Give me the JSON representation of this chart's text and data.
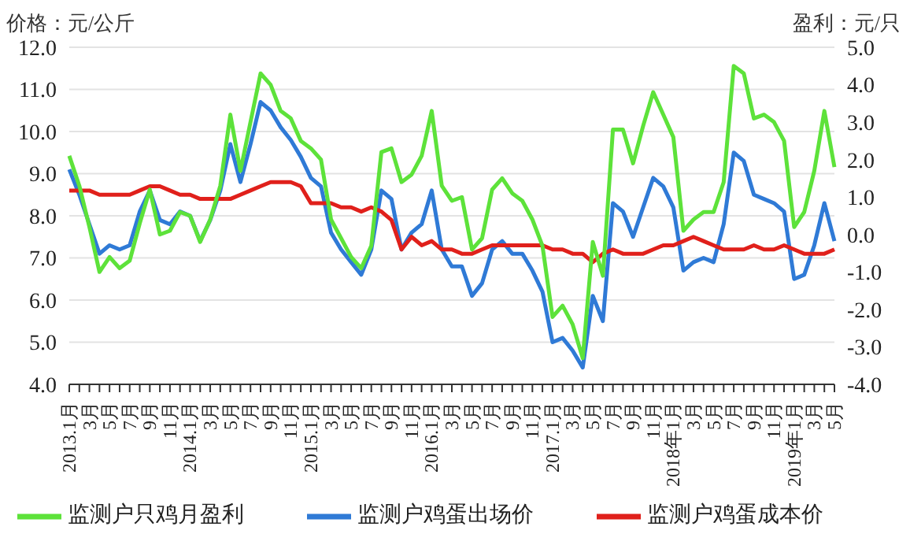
{
  "chart_data": {
    "type": "line",
    "ylabel": "价格：元/公斤",
    "y2label": "盈利：元/只",
    "categories": [
      "2013.1月",
      null,
      "3月",
      null,
      "5月",
      null,
      "7月",
      null,
      "9月",
      null,
      "11月",
      null,
      "2014.1月",
      null,
      "3月",
      null,
      "5月",
      null,
      "7月",
      null,
      "9月",
      null,
      "11月",
      null,
      "2015.1月",
      null,
      "3月",
      null,
      "5月",
      null,
      "7月",
      null,
      "9月",
      null,
      "11月",
      null,
      "2016.1月",
      null,
      "3月",
      null,
      "5月",
      null,
      "7月",
      null,
      "9月",
      null,
      "11月",
      null,
      "2017.1月",
      null,
      "3月",
      null,
      "5月",
      null,
      "7月",
      null,
      "9月",
      null,
      "11月",
      null,
      "2018年1月",
      null,
      "3月",
      null,
      "5月",
      null,
      "7月",
      null,
      "9月",
      null,
      "11月",
      null,
      "2019年1月",
      null,
      "3月",
      null,
      "5月"
    ],
    "series": [
      {
        "name": "监测户鸡蛋出场价",
        "color": "#2f7ad6",
        "values": [
          9.1,
          8.5,
          7.8,
          7.1,
          7.3,
          7.2,
          7.3,
          8.1,
          8.6,
          7.9,
          7.8,
          8.1,
          8.0,
          7.4,
          7.9,
          8.6,
          9.7,
          8.8,
          9.7,
          10.7,
          10.5,
          10.1,
          9.8,
          9.4,
          8.9,
          8.7,
          7.6,
          7.2,
          6.9,
          6.6,
          7.2,
          8.6,
          8.4,
          7.2,
          7.6,
          7.8,
          8.6,
          7.2,
          6.8,
          6.8,
          6.1,
          6.4,
          7.2,
          7.4,
          7.1,
          7.1,
          6.7,
          6.2,
          5.0,
          5.1,
          4.8,
          4.4,
          6.1,
          5.5,
          8.3,
          8.1,
          7.5,
          8.2,
          8.9,
          8.7,
          8.2,
          6.7,
          6.9,
          7.0,
          6.9,
          7.8,
          9.5,
          9.3,
          8.5,
          8.4,
          8.3,
          8.1,
          6.5,
          6.6,
          7.3,
          8.3,
          7.4
        ]
      },
      {
        "name": "监测户鸡蛋成本价",
        "color": "#e0201b",
        "values": [
          8.6,
          8.6,
          8.6,
          8.5,
          8.5,
          8.5,
          8.5,
          8.6,
          8.7,
          8.7,
          8.6,
          8.5,
          8.5,
          8.4,
          8.4,
          8.4,
          8.4,
          8.5,
          8.6,
          8.7,
          8.8,
          8.8,
          8.8,
          8.7,
          8.3,
          8.3,
          8.3,
          8.2,
          8.2,
          8.1,
          8.2,
          8.1,
          7.9,
          7.2,
          7.5,
          7.3,
          7.4,
          7.2,
          7.2,
          7.1,
          7.1,
          7.2,
          7.3,
          7.3,
          7.3,
          7.3,
          7.3,
          7.3,
          7.2,
          7.2,
          7.1,
          7.1,
          6.9,
          7.1,
          7.2,
          7.1,
          7.1,
          7.1,
          7.2,
          7.3,
          7.3,
          7.4,
          7.5,
          7.4,
          7.3,
          7.2,
          7.2,
          7.2,
          7.3,
          7.2,
          7.2,
          7.3,
          7.2,
          7.1,
          7.1,
          7.1,
          7.2
        ]
      },
      {
        "name": "监测户只鸡月盈利",
        "color": "#5de23a",
        "axis": "y2",
        "values": [
          2.1,
          1.3,
          0.2,
          -1.0,
          -0.6,
          -0.9,
          -0.7,
          0.3,
          1.2,
          0.0,
          0.1,
          0.6,
          0.5,
          -0.2,
          0.4,
          1.3,
          3.2,
          1.7,
          3.0,
          4.3,
          4.0,
          3.3,
          3.1,
          2.5,
          2.3,
          2.0,
          0.4,
          -0.1,
          -0.6,
          -0.9,
          -0.3,
          2.2,
          2.3,
          1.4,
          1.6,
          2.1,
          3.3,
          1.3,
          0.9,
          1.0,
          -0.4,
          -0.1,
          1.2,
          1.5,
          1.1,
          0.9,
          0.4,
          -0.3,
          -2.2,
          -1.9,
          -2.4,
          -3.3,
          -0.2,
          -1.1,
          2.8,
          2.8,
          1.9,
          2.9,
          3.8,
          3.2,
          2.6,
          0.1,
          0.4,
          0.6,
          0.6,
          1.4,
          4.5,
          4.3,
          3.1,
          3.2,
          3.0,
          2.5,
          0.2,
          0.6,
          1.7,
          3.3,
          1.8
        ]
      }
    ],
    "ylim": [
      4,
      12
    ],
    "yticks": [
      {
        "value": 4,
        "label": "4.0"
      },
      {
        "value": 5,
        "label": "5.0"
      },
      {
        "value": 6,
        "label": "6.0"
      },
      {
        "value": 7,
        "label": "7.0"
      },
      {
        "value": 8,
        "label": "8.0"
      },
      {
        "value": 9,
        "label": "9.0"
      },
      {
        "value": 10,
        "label": "10.0"
      },
      {
        "value": 11,
        "label": "11.0"
      },
      {
        "value": 12,
        "label": "12.0"
      }
    ],
    "y2lim": [
      -4,
      5
    ],
    "y2ticks": [
      {
        "value": -4,
        "label": "-4.0"
      },
      {
        "value": -3,
        "label": "-3.0"
      },
      {
        "value": -2,
        "label": "-2.0"
      },
      {
        "value": -1,
        "label": "-1.0"
      },
      {
        "value": 0,
        "label": "0.0"
      },
      {
        "value": 1,
        "label": "1.0"
      },
      {
        "value": 2,
        "label": "2.0"
      },
      {
        "value": 3,
        "label": "3.0"
      },
      {
        "value": 4,
        "label": "4.0"
      },
      {
        "value": 5,
        "label": "5.0"
      }
    ],
    "grid": "y",
    "legend": "bottom",
    "marker": "none",
    "line_style": "solid"
  }
}
